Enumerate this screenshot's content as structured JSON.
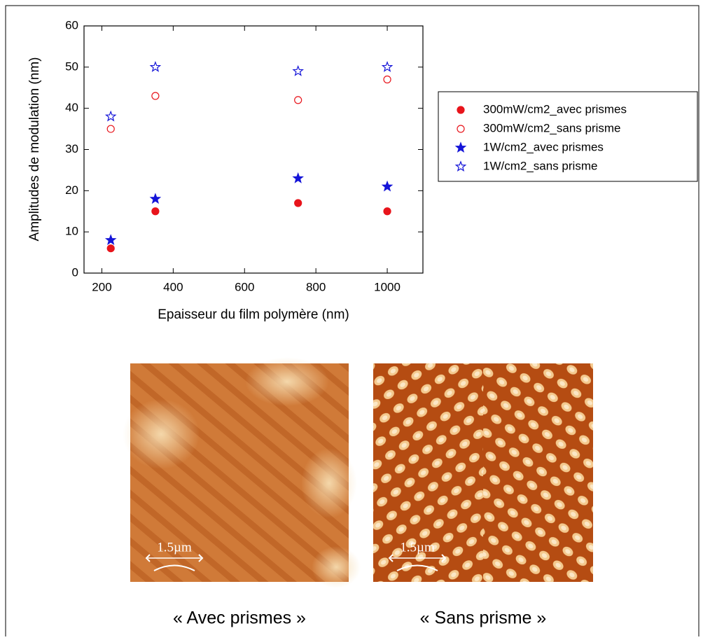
{
  "chart_data": {
    "type": "scatter",
    "x_label": "Epaisseur du film polymère (nm)",
    "y_label": "Amplitudes de modulation (nm)",
    "x": [
      225,
      350,
      750,
      1000
    ],
    "series": [
      {
        "name": "300mW/cm2_avec prismes",
        "color": "#e8141b",
        "marker": "circle",
        "filled": true,
        "values": [
          6,
          15,
          17,
          15
        ]
      },
      {
        "name": "300mW/cm2_sans prisme",
        "color": "#e8141b",
        "marker": "circle",
        "filled": false,
        "values": [
          35,
          43,
          42,
          47
        ]
      },
      {
        "name": "1W/cm2_avec prismes",
        "color": "#1414d8",
        "marker": "star",
        "filled": true,
        "values": [
          8,
          18,
          23,
          21
        ]
      },
      {
        "name": "1W/cm2_sans prisme",
        "color": "#1414d8",
        "marker": "star",
        "filled": false,
        "values": [
          38,
          50,
          49,
          50
        ]
      }
    ],
    "xlim": [
      150,
      1100
    ],
    "xticks": [
      200,
      400,
      600,
      800,
      1000
    ],
    "ylim": [
      0,
      60
    ],
    "yticks": [
      0,
      10,
      20,
      30,
      40,
      50,
      60
    ],
    "grid": false,
    "legend": "right"
  },
  "images": [
    {
      "scale_bar": "1.5µm",
      "caption": "« Avec prismes »"
    },
    {
      "scale_bar": "1.5µm",
      "caption": "« Sans prisme »"
    }
  ]
}
